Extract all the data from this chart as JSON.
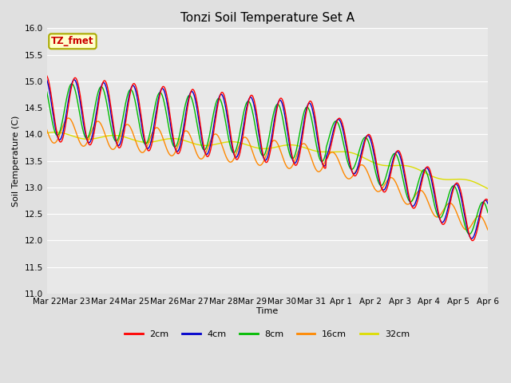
{
  "title": "Tonzi Soil Temperature Set A",
  "xlabel": "Time",
  "ylabel": "Soil Temperature (C)",
  "ylim": [
    11.0,
    16.0
  ],
  "yticks": [
    11.0,
    11.5,
    12.0,
    12.5,
    13.0,
    13.5,
    14.0,
    14.5,
    15.0,
    15.5,
    16.0
  ],
  "colors": {
    "2cm": "#ff0000",
    "4cm": "#0000cc",
    "8cm": "#00bb00",
    "16cm": "#ff8800",
    "32cm": "#dddd00"
  },
  "annotation_text": "TZ_fmet",
  "annotation_bg": "#ffffcc",
  "annotation_border": "#aaaa00",
  "bg_color": "#e0e0e0",
  "title_fontsize": 11,
  "label_fontsize": 8,
  "tick_fontsize": 7.5,
  "xtick_labels": [
    "Mar 22",
    "Mar 23",
    "Mar 24",
    "Mar 25",
    "Mar 26",
    "Mar 27",
    "Mar 28",
    "Mar 29",
    "Mar 30",
    "Mar 31",
    "Apr 1",
    "Apr 2",
    "Apr 3",
    "Apr 4",
    "Apr 5",
    "Apr 6"
  ],
  "line_width": 1.0
}
